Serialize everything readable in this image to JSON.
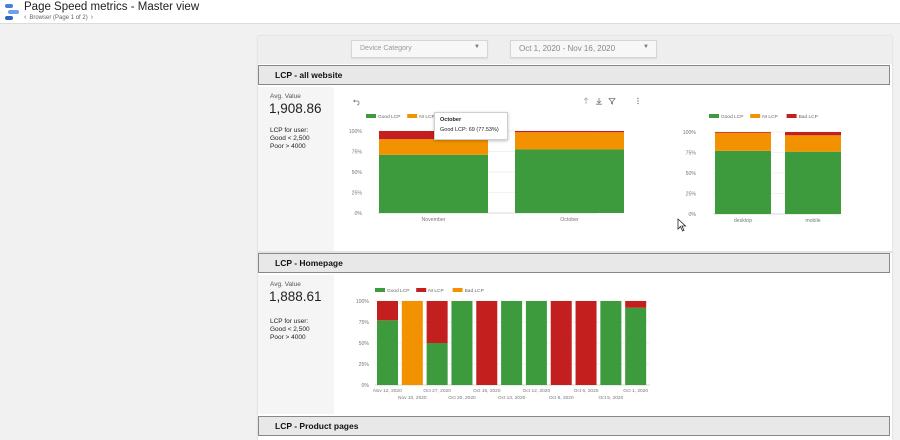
{
  "header": {
    "title": "Page Speed metrics - Master view",
    "page_nav": "Browser (Page 1 of 2)"
  },
  "filters": {
    "device_category": "Device Category",
    "date_range": "Oct 1, 2020 - Nov 16, 2020"
  },
  "sections": {
    "all_website": {
      "title": "LCP - all website",
      "kpi": {
        "label": "Avg. Value",
        "value": "1,908.86",
        "note_lines": [
          "LCP for user:",
          "Good < 2,500",
          "Poor > 4000"
        ]
      }
    },
    "homepage": {
      "title": "LCP - Homepage",
      "kpi": {
        "label": "Avg. Value",
        "value": "1,888.61",
        "note_lines": [
          "LCP for user:",
          "Good < 2,500",
          "Poor > 4000"
        ]
      }
    },
    "product_pages": {
      "title": "LCP - Product pages"
    }
  },
  "tooltip": {
    "title": "October",
    "body": "Good LCP: 69 (77.53%)"
  },
  "colors": {
    "good": "#3d9a3d",
    "ni": "#f39200",
    "bad": "#c31f1f"
  },
  "icons": [
    "undo-icon",
    "sort-up-icon",
    "download-icon",
    "filter-icon",
    "more-options-icon"
  ],
  "chart_data": [
    {
      "type": "bar",
      "stacked": true,
      "title": "",
      "categories": [
        "November",
        "October"
      ],
      "series": [
        {
          "name": "Good LCP",
          "color": "#3d9a3d",
          "values": [
            71,
            77.53
          ]
        },
        {
          "name": "NI LCP",
          "color": "#f39200",
          "values": [
            19,
            21
          ]
        },
        {
          "name": "Bad LCP",
          "color": "#c31f1f",
          "values": [
            10,
            1.47
          ]
        }
      ],
      "y_ticks": [
        "0%",
        "25%",
        "50%",
        "75%",
        "100%"
      ],
      "ylim": [
        0,
        100
      ],
      "legend_position": "top-left",
      "grid": true
    },
    {
      "type": "bar",
      "stacked": true,
      "title": "",
      "categories": [
        "desktop",
        "mobile"
      ],
      "series": [
        {
          "name": "Good LCP",
          "color": "#3d9a3d",
          "values": [
            77,
            76
          ]
        },
        {
          "name": "NI LCP",
          "color": "#f39200",
          "values": [
            22,
            20
          ]
        },
        {
          "name": "Bad LCP",
          "color": "#c31f1f",
          "values": [
            1,
            4
          ]
        }
      ],
      "y_ticks": [
        "0%",
        "25%",
        "50%",
        "75%",
        "100%"
      ],
      "ylim": [
        0,
        100
      ],
      "legend_position": "top-left",
      "grid": true
    },
    {
      "type": "bar",
      "stacked": true,
      "title": "",
      "categories": [
        "Nov 12, 2020",
        "Nov 10, 2020",
        "Oct 27, 2020",
        "Oct 20, 2020",
        "Oct 16, 2020",
        "Oct 13, 2020",
        "Oct 12, 2020",
        "Oct 9, 2020",
        "Oct 6, 2020",
        "Oct 5, 2020",
        "Oct 1, 2020"
      ],
      "x_tick_labels_top": [
        "Nov 12, 2020",
        "Oct 27, 2020",
        "Oct 16, 2020",
        "Oct 12, 2020",
        "Oct 6, 2020",
        "Oct 1, 2020"
      ],
      "x_tick_labels_bottom": [
        "Nov 10, 2020",
        "Oct 20, 2020",
        "Oct 13, 2020",
        "Oct 9, 2020",
        "Oct 5, 2020"
      ],
      "series": [
        {
          "name": "Good LCP",
          "color": "#3d9a3d",
          "values": [
            77,
            0,
            50,
            100,
            0,
            100,
            100,
            0,
            0,
            100,
            92
          ]
        },
        {
          "name": "NI LCP",
          "color": "#c31f1f",
          "values": [
            23,
            0,
            50,
            0,
            100,
            0,
            0,
            100,
            100,
            0,
            8
          ]
        },
        {
          "name": "Bad LCP",
          "color": "#f39200",
          "values": [
            0,
            100,
            0,
            0,
            0,
            0,
            0,
            0,
            0,
            0,
            0
          ]
        }
      ],
      "y_ticks": [
        "0%",
        "25%",
        "50%",
        "75%",
        "100%"
      ],
      "ylim": [
        0,
        100
      ],
      "legend_position": "top-left",
      "grid": true
    }
  ]
}
